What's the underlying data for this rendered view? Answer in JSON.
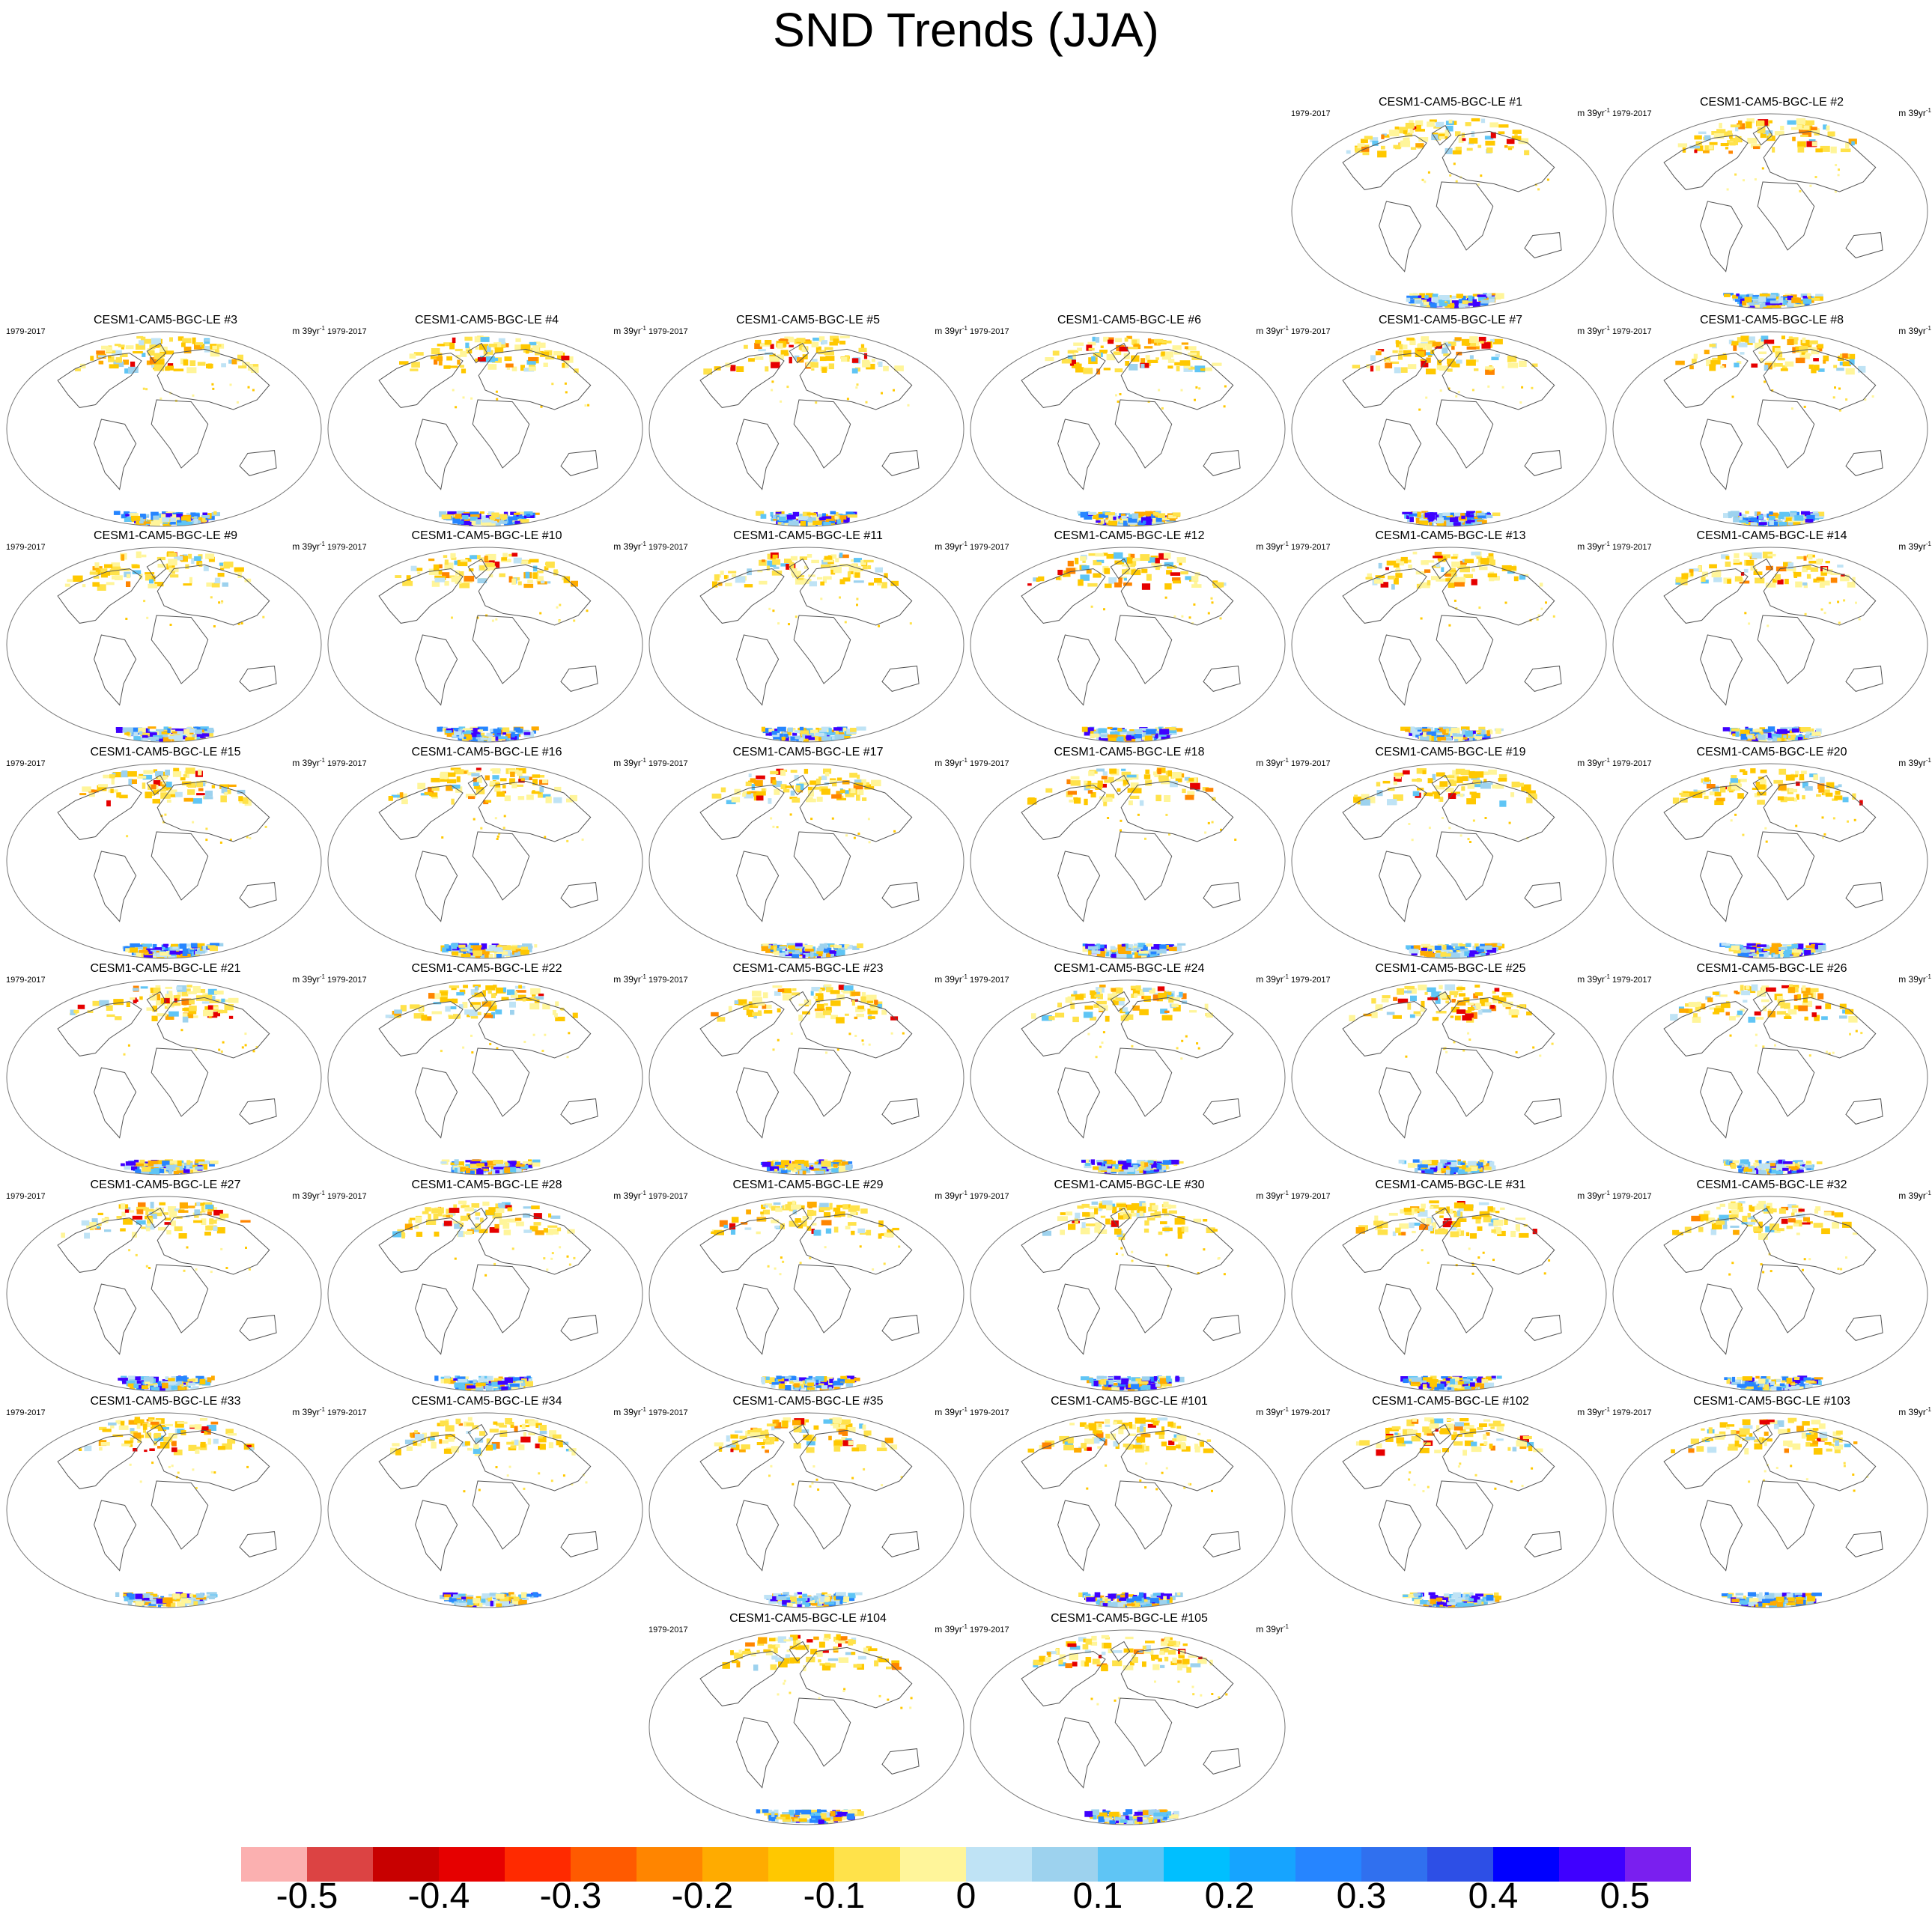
{
  "title": "SND Trends (JJA)",
  "panel_common": {
    "period": "1979-2017",
    "units": "m 39yr",
    "units_exp": "-1"
  },
  "panels": [
    {
      "title": "CESM1-CAM5-BGC-LE #1"
    },
    {
      "title": "CESM1-CAM5-BGC-LE #2"
    },
    {
      "title": "CESM1-CAM5-BGC-LE #3"
    },
    {
      "title": "CESM1-CAM5-BGC-LE #4"
    },
    {
      "title": "CESM1-CAM5-BGC-LE #5"
    },
    {
      "title": "CESM1-CAM5-BGC-LE #6"
    },
    {
      "title": "CESM1-CAM5-BGC-LE #7"
    },
    {
      "title": "CESM1-CAM5-BGC-LE #8"
    },
    {
      "title": "CESM1-CAM5-BGC-LE #9"
    },
    {
      "title": "CESM1-CAM5-BGC-LE #10"
    },
    {
      "title": "CESM1-CAM5-BGC-LE #11"
    },
    {
      "title": "CESM1-CAM5-BGC-LE #12"
    },
    {
      "title": "CESM1-CAM5-BGC-LE #13"
    },
    {
      "title": "CESM1-CAM5-BGC-LE #14"
    },
    {
      "title": "CESM1-CAM5-BGC-LE #15"
    },
    {
      "title": "CESM1-CAM5-BGC-LE #16"
    },
    {
      "title": "CESM1-CAM5-BGC-LE #17"
    },
    {
      "title": "CESM1-CAM5-BGC-LE #18"
    },
    {
      "title": "CESM1-CAM5-BGC-LE #19"
    },
    {
      "title": "CESM1-CAM5-BGC-LE #20"
    },
    {
      "title": "CESM1-CAM5-BGC-LE #21"
    },
    {
      "title": "CESM1-CAM5-BGC-LE #22"
    },
    {
      "title": "CESM1-CAM5-BGC-LE #23"
    },
    {
      "title": "CESM1-CAM5-BGC-LE #24"
    },
    {
      "title": "CESM1-CAM5-BGC-LE #25"
    },
    {
      "title": "CESM1-CAM5-BGC-LE #26"
    },
    {
      "title": "CESM1-CAM5-BGC-LE #27"
    },
    {
      "title": "CESM1-CAM5-BGC-LE #28"
    },
    {
      "title": "CESM1-CAM5-BGC-LE #29"
    },
    {
      "title": "CESM1-CAM5-BGC-LE #30"
    },
    {
      "title": "CESM1-CAM5-BGC-LE #31"
    },
    {
      "title": "CESM1-CAM5-BGC-LE #32"
    },
    {
      "title": "CESM1-CAM5-BGC-LE #33"
    },
    {
      "title": "CESM1-CAM5-BGC-LE #34"
    },
    {
      "title": "CESM1-CAM5-BGC-LE #35"
    },
    {
      "title": "CESM1-CAM5-BGC-LE #101"
    },
    {
      "title": "CESM1-CAM5-BGC-LE #102"
    },
    {
      "title": "CESM1-CAM5-BGC-LE #103"
    },
    {
      "title": "CESM1-CAM5-BGC-LE #104"
    },
    {
      "title": "CESM1-CAM5-BGC-LE #105"
    }
  ],
  "colorbar": {
    "colors": [
      "#fbb0b0",
      "#dc4343",
      "#c80000",
      "#e60000",
      "#ff2a00",
      "#ff5a00",
      "#ff8500",
      "#ffab00",
      "#ffc800",
      "#ffe24a",
      "#fff59a",
      "#bfe3f5",
      "#9dd2ee",
      "#5fc5f5",
      "#00bfff",
      "#16a4ff",
      "#2685ff",
      "#3070ef",
      "#2d4fe6",
      "#0000ff",
      "#3f00ff",
      "#7a1fef"
    ],
    "labels": [
      "-0.5",
      "-0.4",
      "-0.3",
      "-0.2",
      "-0.1",
      "0",
      "0.1",
      "0.2",
      "0.3",
      "0.4",
      "0.5"
    ]
  }
}
